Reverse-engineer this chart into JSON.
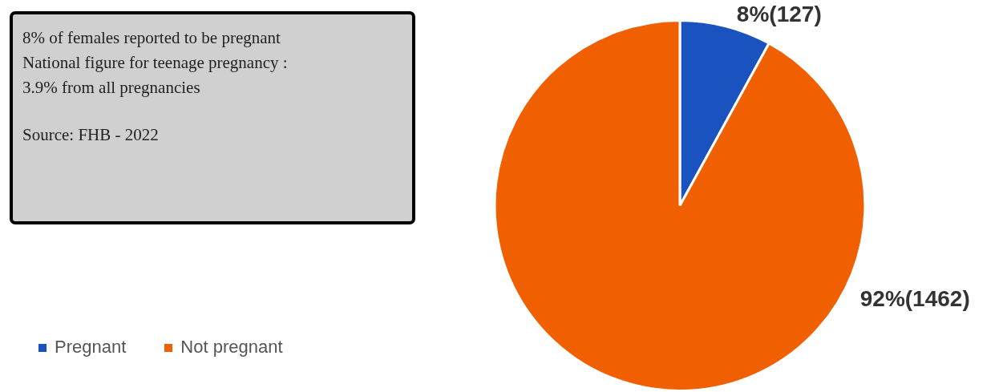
{
  "chart_data": {
    "type": "pie",
    "categories": [
      "Pregnant",
      "Not pregnant"
    ],
    "values": [
      127,
      1462
    ],
    "colors": [
      "#1a52c0",
      "#f06000"
    ],
    "value_labels": [
      "8%(127)",
      "92%(1462)"
    ],
    "legend": "bottom left",
    "annotations": [
      "8% of females reported to be pregnant",
      "National figure for teenage pregnancy :",
      "3.9% from all pregnancies",
      "Source: FHB - 2022"
    ]
  }
}
